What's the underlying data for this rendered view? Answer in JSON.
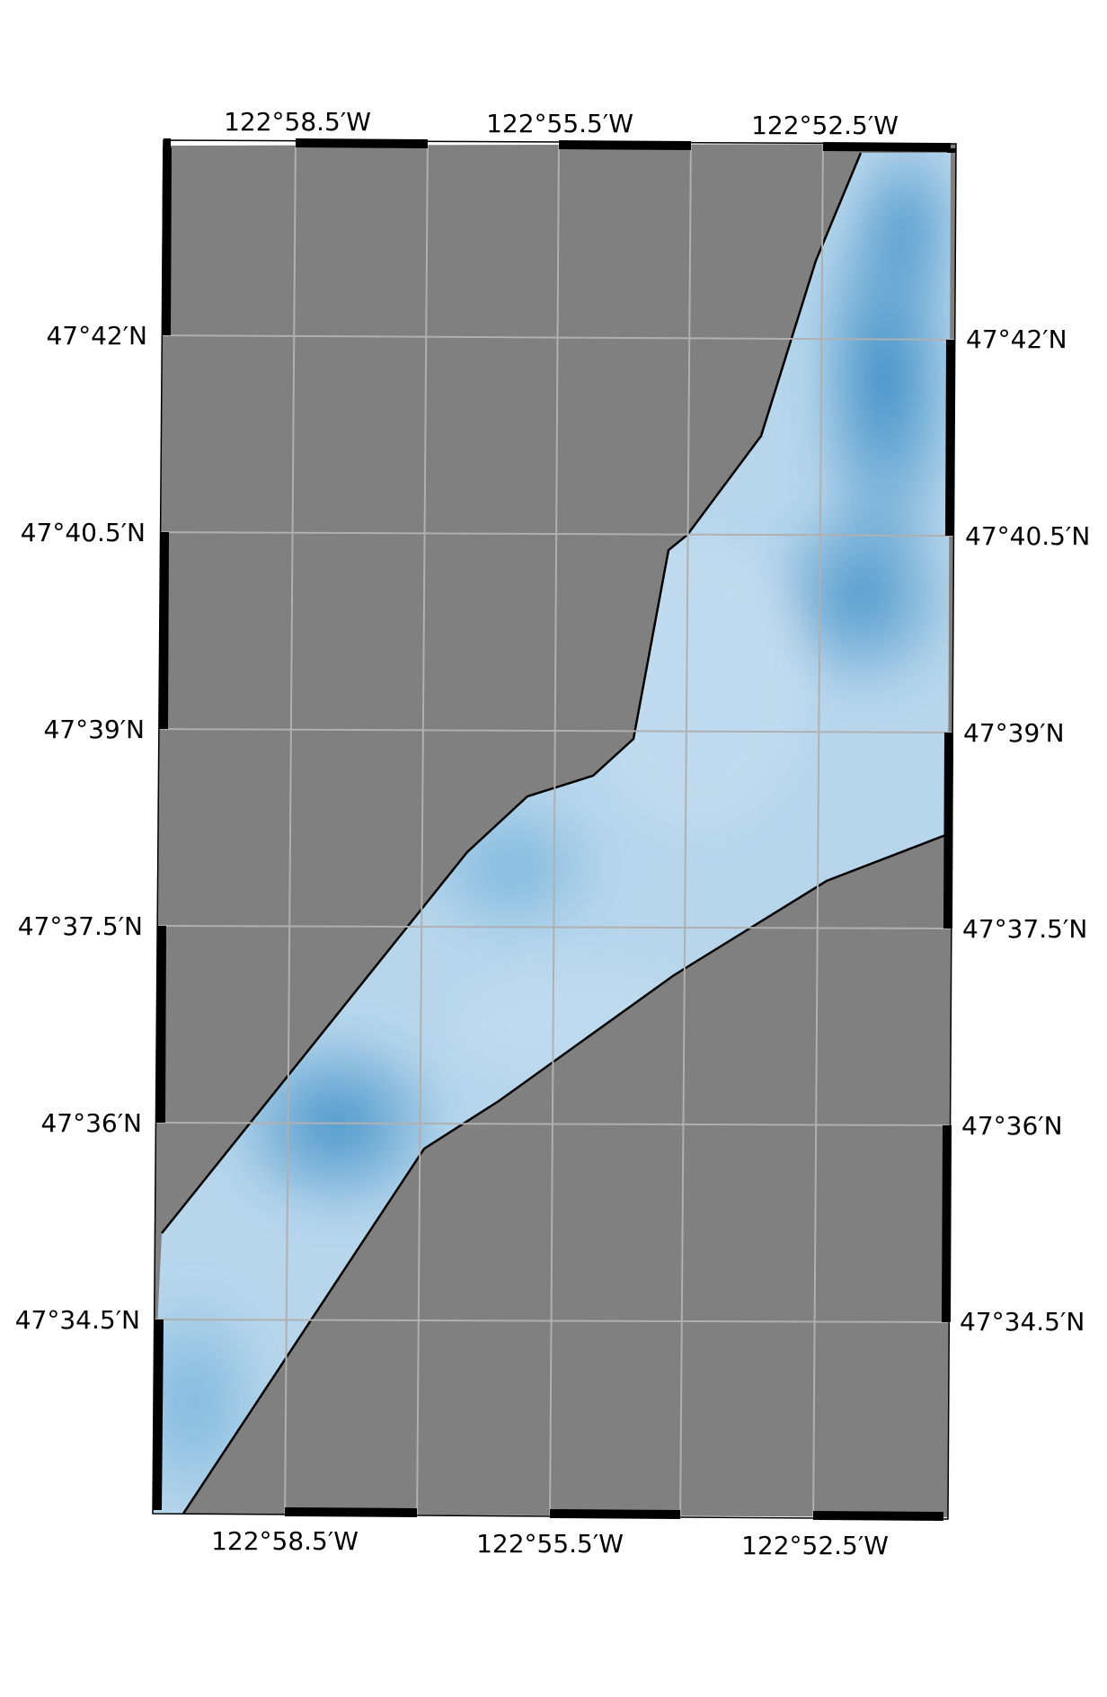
{
  "map": {
    "land_color": "#808080",
    "coast_color": "#000000",
    "grid_color": "#b0b0b0",
    "water_colors": [
      "#4a97c9",
      "#8dc0df",
      "#c2dbee"
    ],
    "lon_labels_top": [
      "122°58.5′W",
      "122°55.5′W",
      "122°52.5′W"
    ],
    "lon_labels_bottom": [
      "122°58.5′W",
      "122°55.5′W",
      "122°52.5′W"
    ],
    "lat_labels_left": [
      "47°42′N",
      "47°40.5′N",
      "47°39′N",
      "47°37.5′N",
      "47°36′N",
      "47°34.5′N"
    ],
    "lat_labels_right": [
      "47°42′N",
      "47°40.5′N",
      "47°39′N",
      "47°37.5′N",
      "47°36′N",
      "47°34.5′N"
    ]
  }
}
